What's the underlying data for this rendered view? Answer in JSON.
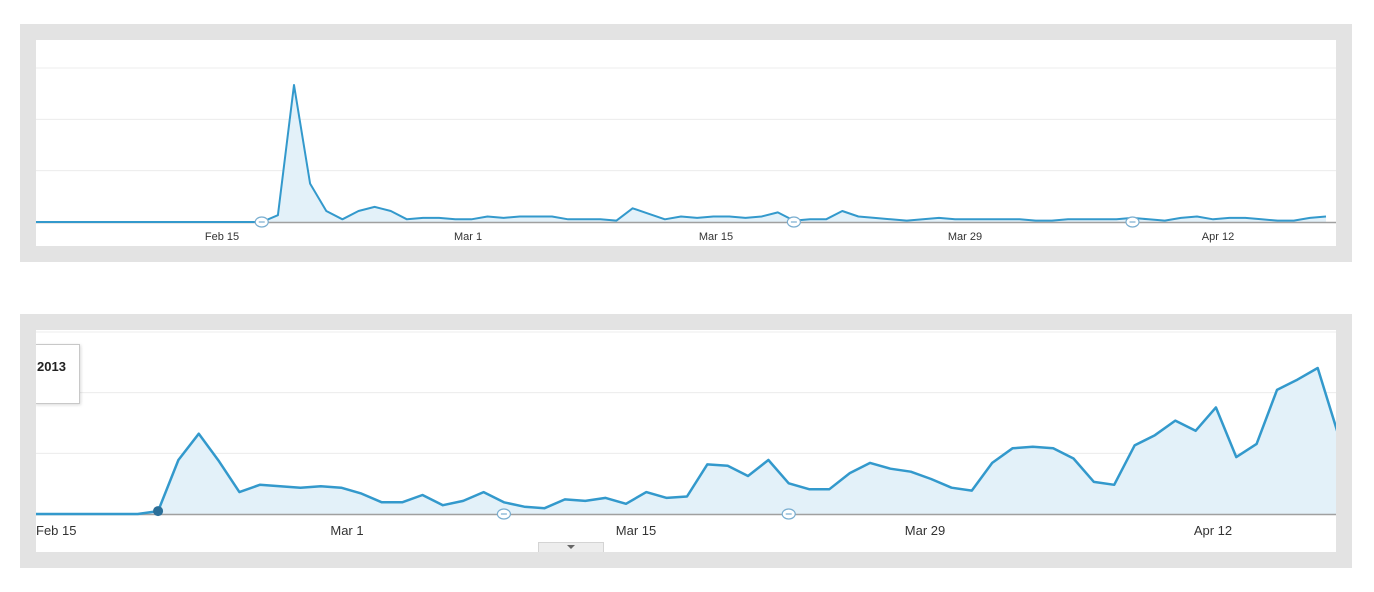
{
  "colors": {
    "line": "#3399cc",
    "fill": "#e3f1f9",
    "grid": "#ececec",
    "axis": "#a0a0a0",
    "marker": "#2b6f99",
    "frame": "#e3e3e3"
  },
  "chart_data": [
    {
      "type": "area",
      "x_ticks": [
        "Feb 15",
        "Mar 1",
        "Mar 15",
        "Mar 29",
        "Apr 12"
      ],
      "grid": true,
      "y_gridlines": 3,
      "values": [
        0,
        0,
        0,
        0,
        0,
        0,
        0,
        0,
        0,
        0,
        0,
        0,
        0,
        0,
        0,
        0.05,
        1.0,
        0.28,
        0.08,
        0.02,
        0.08,
        0.11,
        0.08,
        0.02,
        0.03,
        0.03,
        0.02,
        0.02,
        0.04,
        0.03,
        0.04,
        0.04,
        0.04,
        0.02,
        0.02,
        0.02,
        0.01,
        0.1,
        0.06,
        0.02,
        0.04,
        0.03,
        0.04,
        0.04,
        0.03,
        0.04,
        0.07,
        0.01,
        0.02,
        0.02,
        0.08,
        0.04,
        0.03,
        0.02,
        0.01,
        0.02,
        0.03,
        0.02,
        0.02,
        0.02,
        0.02,
        0.02,
        0.01,
        0.01,
        0.02,
        0.02,
        0.02,
        0.02,
        0.03,
        0.02,
        0.01,
        0.03,
        0.04,
        0.02,
        0.03,
        0.03,
        0.02,
        0.01,
        0.01,
        0.03,
        0.04
      ],
      "annotation_markers": [
        14,
        47,
        68
      ]
    },
    {
      "type": "area",
      "x_ticks": [
        "Feb 15",
        "Mar 1",
        "Mar 15",
        "Mar 29",
        "Apr 12"
      ],
      "grid": true,
      "y_gridlines": 3,
      "legend_text": "2013",
      "values": [
        0,
        0,
        0,
        0,
        0,
        0,
        0.02,
        0.37,
        0.55,
        0.36,
        0.15,
        0.2,
        0.19,
        0.18,
        0.19,
        0.18,
        0.14,
        0.08,
        0.08,
        0.13,
        0.06,
        0.09,
        0.15,
        0.08,
        0.05,
        0.04,
        0.1,
        0.09,
        0.11,
        0.07,
        0.15,
        0.11,
        0.12,
        0.34,
        0.33,
        0.26,
        0.37,
        0.21,
        0.17,
        0.17,
        0.28,
        0.35,
        0.31,
        0.29,
        0.24,
        0.18,
        0.16,
        0.35,
        0.45,
        0.46,
        0.45,
        0.38,
        0.22,
        0.2,
        0.47,
        0.54,
        0.64,
        0.57,
        0.73,
        0.39,
        0.48,
        0.85,
        0.92,
        1.0,
        0.55
      ],
      "highlight_index": 6,
      "annotation_markers": [
        23,
        37
      ]
    }
  ]
}
